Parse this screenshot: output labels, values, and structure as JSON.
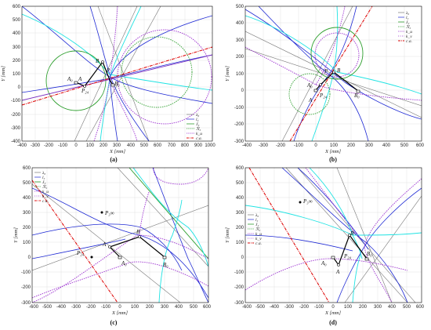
{
  "figure": {
    "colors": {
      "lambda0": "#777777",
      "l3": "#1f2ad4",
      "j3": "#2e9f2e",
      "r3": "#2e9f2e",
      "ku": "#9b2fd0",
      "kv": "#9b2fd0",
      "ku_cyan": "#1fe3e3",
      "ca": "#e01010",
      "line_purple": "#7a2fc0",
      "frame": "#000000"
    },
    "legend": [
      {
        "key": "lambda0",
        "label": "λ₀",
        "style": "solid-gray"
      },
      {
        "key": "l3",
        "label": "l₃",
        "style": "solid-blue"
      },
      {
        "key": "j3",
        "label": "J₃",
        "style": "solid-green"
      },
      {
        "key": "r3",
        "label": "ℛ₃",
        "style": "dotted-green"
      },
      {
        "key": "ku",
        "label": "k_u",
        "style": "dotted-purple"
      },
      {
        "key": "kv",
        "label": "k_v",
        "style": "dotted-purple2"
      },
      {
        "key": "ca",
        "label": "c.a.",
        "style": "dashdot-red"
      }
    ],
    "x_axis_label": "X [mm]",
    "y_axis_label": "Y [mm]"
  },
  "panels": [
    {
      "id": "a",
      "caption": "(a)",
      "xticks": [
        "-400",
        "-300",
        "-200",
        "-100",
        "0",
        "100",
        "200",
        "300",
        "400",
        "500",
        "600",
        "700",
        "800",
        "900",
        "1000"
      ],
      "yticks": [
        "600",
        "500",
        "400",
        "300",
        "200",
        "100",
        "0",
        "-100",
        "-200",
        "-300",
        "-400"
      ],
      "xlim": [
        -400,
        1000
      ],
      "ylim": [
        -400,
        600
      ],
      "points": {
        "A0": "A₀",
        "B0": "B₀",
        "A": "A",
        "B": "B",
        "P24": "P₂₄",
        "P": "P"
      }
    },
    {
      "id": "b",
      "caption": "(b)",
      "xticks": [
        "-400",
        "-300",
        "-200",
        "-100",
        "0",
        "100",
        "200",
        "300",
        "400",
        "500",
        "600"
      ],
      "yticks": [
        "500",
        "400",
        "300",
        "200",
        "100",
        "0",
        "-100",
        "-200",
        "-300"
      ],
      "xlim": [
        -400,
        600
      ],
      "ylim": [
        -300,
        500
      ],
      "points": {
        "A0": "A₀",
        "B0": "B₀",
        "A": "A",
        "B": "B",
        "P24": "P₂₄",
        "P": "P"
      }
    },
    {
      "id": "c",
      "caption": "(c)",
      "xticks": [
        "-600",
        "-500",
        "-400",
        "-300",
        "-200",
        "-100",
        "0",
        "100",
        "200",
        "300",
        "400",
        "500",
        "600"
      ],
      "yticks": [
        "600",
        "500",
        "400",
        "300",
        "200",
        "100",
        "0",
        "-100",
        "-200",
        "-300"
      ],
      "xlim": [
        -600,
        600
      ],
      "ylim": [
        -300,
        600
      ],
      "points": {
        "A0": "A₀",
        "B0": "B₀",
        "A": "A",
        "B": "B",
        "P24": "P₂₄",
        "P3inf": "P₃∞"
      }
    },
    {
      "id": "d",
      "caption": "(d)",
      "xticks": [
        "-600",
        "-500",
        "-400",
        "-300",
        "-200",
        "-100",
        "0",
        "100",
        "200",
        "300",
        "400",
        "500",
        "600"
      ],
      "yticks": [
        "600",
        "500",
        "400",
        "300",
        "200",
        "100",
        "0",
        "-100",
        "-200",
        "-300"
      ],
      "xlim": [
        -600,
        600
      ],
      "ylim": [
        -300,
        600
      ],
      "points": {
        "A0": "A₀",
        "B0": "B₀",
        "A": "A",
        "B": "B",
        "P24": "P₂₄",
        "P3inf": "P₃∞"
      }
    }
  ]
}
